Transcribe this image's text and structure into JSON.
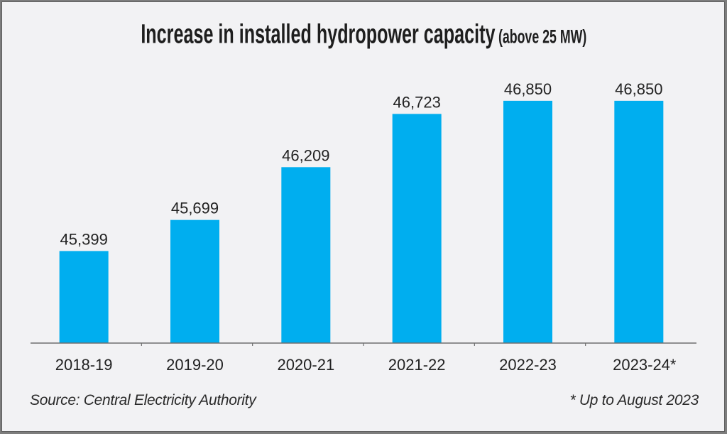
{
  "chart_data": {
    "type": "bar",
    "title": "Increase in installed hydropower capacity",
    "title_suffix": "(above 25 MW)",
    "categories": [
      "2018-19",
      "2019-20",
      "2020-21",
      "2021-22",
      "2022-23",
      "2023-24*"
    ],
    "values": [
      45399,
      45699,
      46209,
      46723,
      46850,
      46850
    ],
    "value_labels": [
      "45,399",
      "45,699",
      "46,209",
      "46,723",
      "46,850",
      "46,850"
    ],
    "xlabel": "",
    "ylabel": "",
    "ylim": [
      44510,
      47000
    ],
    "grid": false,
    "legend": "none",
    "bar_color": "#00aeef",
    "source": "Source: Central Electricity Authority",
    "footnote": "* Up to August 2023"
  }
}
